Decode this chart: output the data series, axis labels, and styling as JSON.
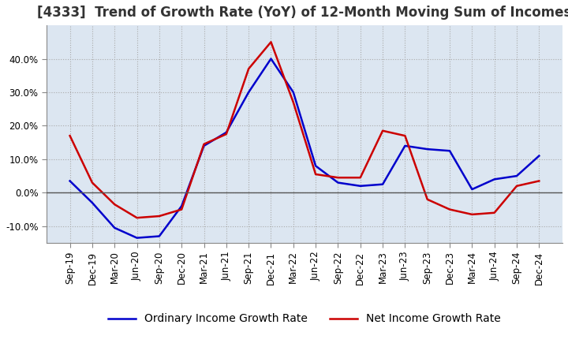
{
  "title": "[4333]  Trend of Growth Rate (YoY) of 12-Month Moving Sum of Incomes",
  "legend_labels": [
    "Ordinary Income Growth Rate",
    "Net Income Growth Rate"
  ],
  "line_colors": [
    "#0000cc",
    "#cc0000"
  ],
  "x_labels": [
    "Sep-19",
    "Dec-19",
    "Mar-20",
    "Jun-20",
    "Sep-20",
    "Dec-20",
    "Mar-21",
    "Jun-21",
    "Sep-21",
    "Dec-21",
    "Mar-22",
    "Jun-22",
    "Sep-22",
    "Dec-22",
    "Mar-23",
    "Jun-23",
    "Sep-23",
    "Dec-23",
    "Mar-24",
    "Jun-24",
    "Sep-24",
    "Dec-24"
  ],
  "ordinary_income": [
    3.5,
    -3.0,
    -10.5,
    -13.5,
    -13.0,
    -4.0,
    14.0,
    18.0,
    30.0,
    40.0,
    30.0,
    8.0,
    3.0,
    2.0,
    2.5,
    14.0,
    13.0,
    12.5,
    1.0,
    4.0,
    5.0,
    11.0
  ],
  "net_income": [
    17.0,
    3.0,
    -3.5,
    -7.5,
    -7.0,
    -5.0,
    14.5,
    17.5,
    37.0,
    45.0,
    27.0,
    5.5,
    4.5,
    4.5,
    18.5,
    17.0,
    -2.0,
    -5.0,
    -6.5,
    -6.0,
    2.0,
    3.5
  ],
  "ylim": [
    -15,
    50
  ],
  "yticks": [
    -10.0,
    0.0,
    10.0,
    20.0,
    30.0,
    40.0
  ],
  "background_color": "#dce6f1",
  "plot_background_color": "#dce6f1",
  "grid_color": "#aaaaaa",
  "title_fontsize": 12,
  "tick_fontsize": 8.5,
  "legend_fontsize": 10
}
